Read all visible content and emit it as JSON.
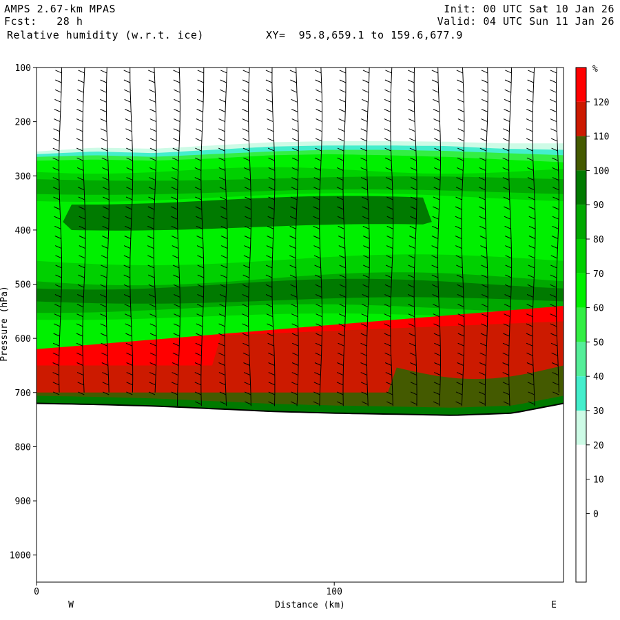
{
  "header": {
    "model": "AMPS 2.67-km MPAS",
    "forecast": "Fcst:   28 h",
    "field": "Relative humidity (w.r.t. ice)",
    "xy": "XY=  95.8,659.1 to 159.6,677.9",
    "init": "Init: 00 UTC Sat 10 Jan 26",
    "valid": "Valid: 04 UTC Sun 11 Jan 26"
  },
  "chart_data": {
    "type": "heatmap",
    "title": "Relative humidity (w.r.t. ice)",
    "xlabel": "Distance (km)",
    "ylabel": "Pressure (hPa)",
    "x_ticks": [
      "0",
      "100"
    ],
    "xlim": [
      0,
      177
    ],
    "ylim": [
      1050,
      100
    ],
    "y_ticks": [
      "100",
      "200",
      "300",
      "400",
      "500",
      "600",
      "700",
      "800",
      "900",
      "1000"
    ],
    "left_end_label": "W",
    "right_end_label": "E",
    "colorbar": {
      "unit": "%",
      "labels": [
        "120",
        "110",
        "100",
        "90",
        "80",
        "70",
        "60",
        "50",
        "40",
        "30",
        "20",
        "10",
        "0"
      ],
      "colors": [
        "#ff0000",
        "#cc1a00",
        "#445a00",
        "#007a00",
        "#00a800",
        "#00d000",
        "#00f000",
        "#33ee44",
        "#55ee99",
        "#44eecc",
        "#cdfbe6",
        "#ffffff",
        "#ffffff",
        "#ffffff",
        "#ffffff"
      ]
    },
    "layers": [
      {
        "band": "30",
        "color": "#cdfbe6",
        "top": [
          255,
          248,
          250,
          244,
          238,
          236,
          236,
          237,
          240,
          240
        ],
        "bottom": 720
      },
      {
        "band": "40",
        "color": "#44eecc",
        "top": [
          260,
          255,
          258,
          252,
          246,
          244,
          244,
          245,
          250,
          252
        ],
        "bottom": 720
      },
      {
        "band": "60",
        "color": "#33ee44",
        "top": [
          265,
          262,
          265,
          260,
          255,
          252,
          252,
          254,
          258,
          262
        ],
        "bottom": 720
      },
      {
        "band": "70",
        "color": "#00f000",
        "top": [
          272,
          270,
          272,
          268,
          262,
          260,
          262,
          265,
          270,
          275
        ],
        "bottom": 720
      }
    ],
    "ground_pressure": [
      720,
      722,
      725,
      730,
      735,
      738,
      740,
      742,
      738,
      720
    ],
    "ground_x": [
      0,
      20,
      40,
      60,
      80,
      100,
      120,
      140,
      160,
      177
    ]
  }
}
